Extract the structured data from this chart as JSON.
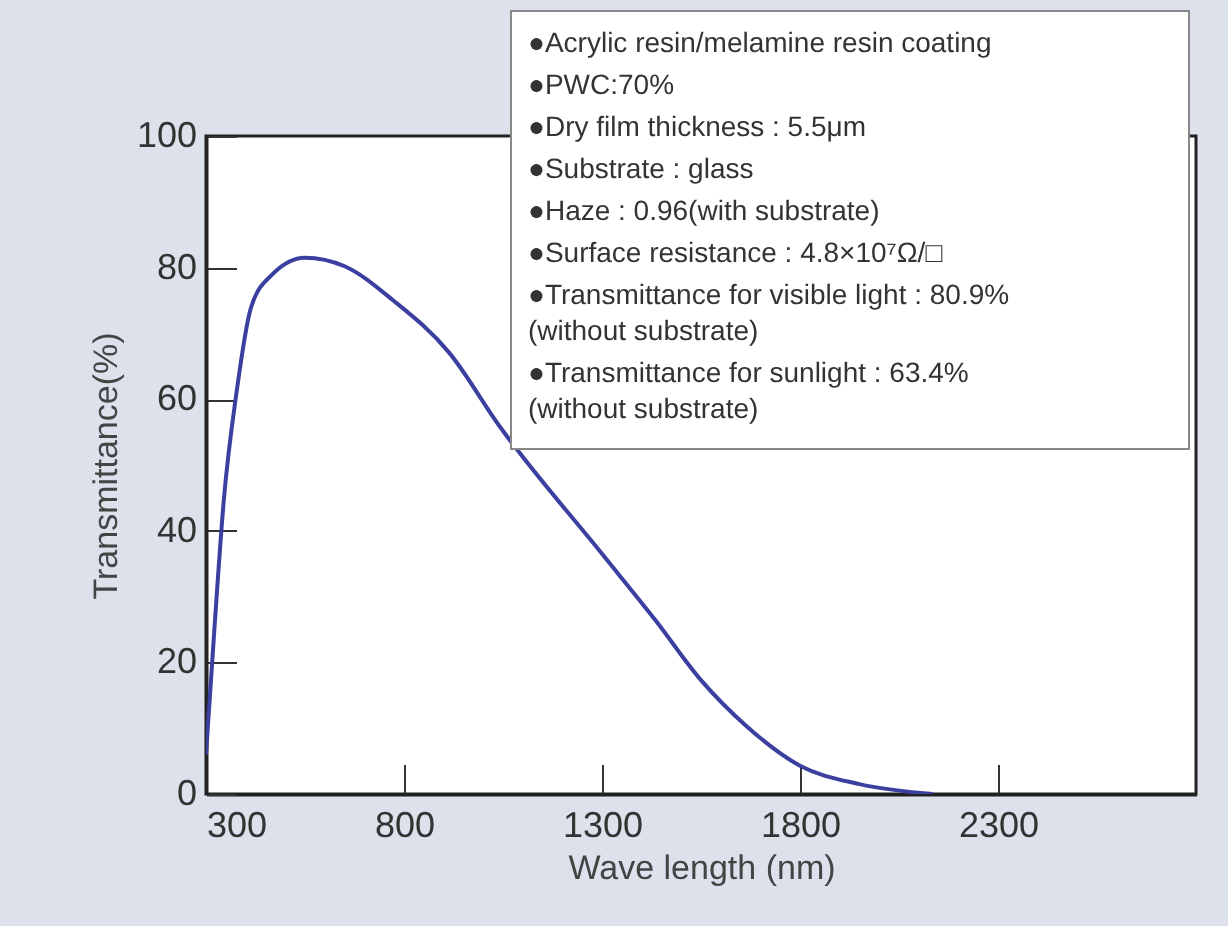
{
  "chart_data": {
    "type": "line",
    "xlabel": "Wave length (nm)",
    "ylabel": "Transmittance(%)",
    "xlim": [
      300,
      2800
    ],
    "xticks": [
      300,
      800,
      1300,
      1800,
      2300
    ],
    "ylim": [
      0,
      100
    ],
    "yticks": [
      0,
      20,
      40,
      60,
      80,
      100
    ],
    "grid": false,
    "marker": "none",
    "series": [
      {
        "color": "#3b3fa0",
        "x": [
          300,
          320,
          345,
          377,
          414,
          468,
          550,
          650,
          773,
          915,
          1040,
          1300,
          1435,
          1550,
          1665,
          1800,
          1950,
          2135
        ],
        "values": [
          6,
          24,
          44.7,
          61,
          74,
          79,
          81.5,
          80.2,
          75,
          67,
          56,
          36.5,
          26.4,
          17.3,
          10.3,
          4.3,
          1.5,
          0
        ]
      }
    ],
    "annotations": [
      "●Acrylic resin/melamine resin coating",
      "●PWC:70%",
      "●Dry film thickness : 5.5μm",
      "●Substrate : glass",
      "●Haze : 0.96(with substrate)",
      "●Surface resistance : 4.8×10⁷Ω/□",
      "●Transmittance for visible light : 80.9%\n(without substrate)",
      "●Transmittance for sunlight : 63.4%\n(without substrate)"
    ]
  }
}
